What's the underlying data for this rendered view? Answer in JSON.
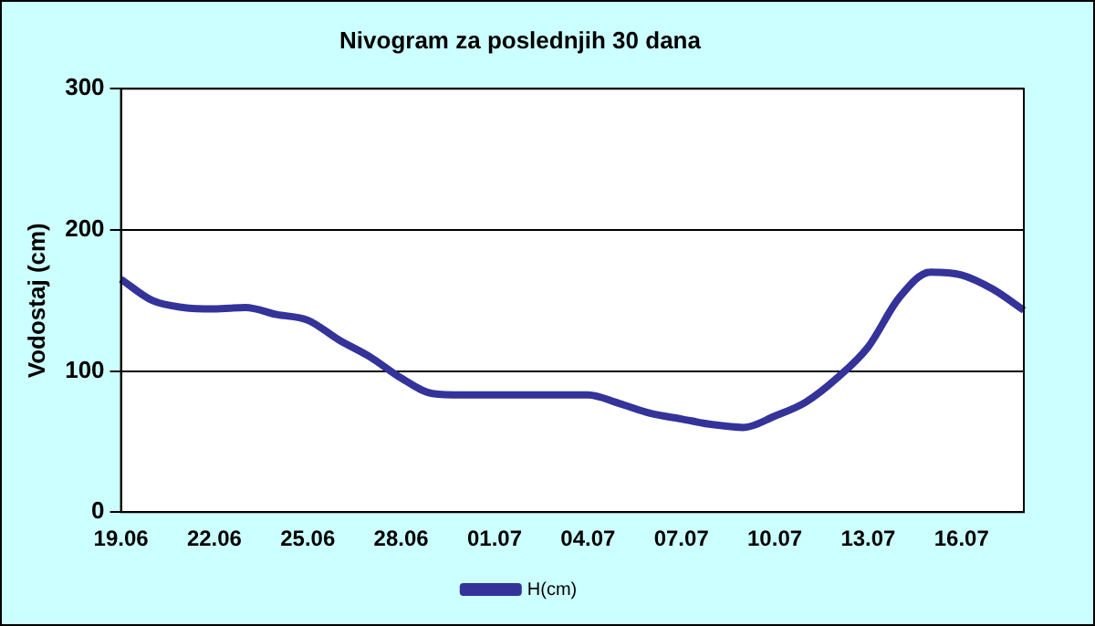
{
  "chart_data": {
    "type": "line",
    "title": "Nivogram za poslednjih 30 dana",
    "ylabel": "Vodostaj (cm)",
    "categories": [
      "19.06",
      null,
      null,
      "22.06",
      null,
      null,
      "25.06",
      null,
      null,
      "28.06",
      null,
      null,
      "01.07",
      null,
      null,
      "04.07",
      null,
      null,
      "07.07",
      null,
      null,
      "10.07",
      null,
      null,
      "13.07",
      null,
      null,
      "16.07",
      null,
      null
    ],
    "series": [
      {
        "name": "H(cm)",
        "color": "#333399",
        "values": [
          165,
          150,
          145,
          144,
          145,
          140,
          136,
          122,
          110,
          95,
          84,
          83,
          83,
          83,
          83,
          83,
          77,
          70,
          66,
          62,
          60,
          68,
          78,
          95,
          117,
          152,
          170,
          168,
          158,
          143
        ]
      }
    ],
    "ylim": [
      0,
      300
    ],
    "yticks": [
      0,
      100,
      200,
      300
    ],
    "grid": "y",
    "legend": "bottom",
    "marker": "none"
  }
}
